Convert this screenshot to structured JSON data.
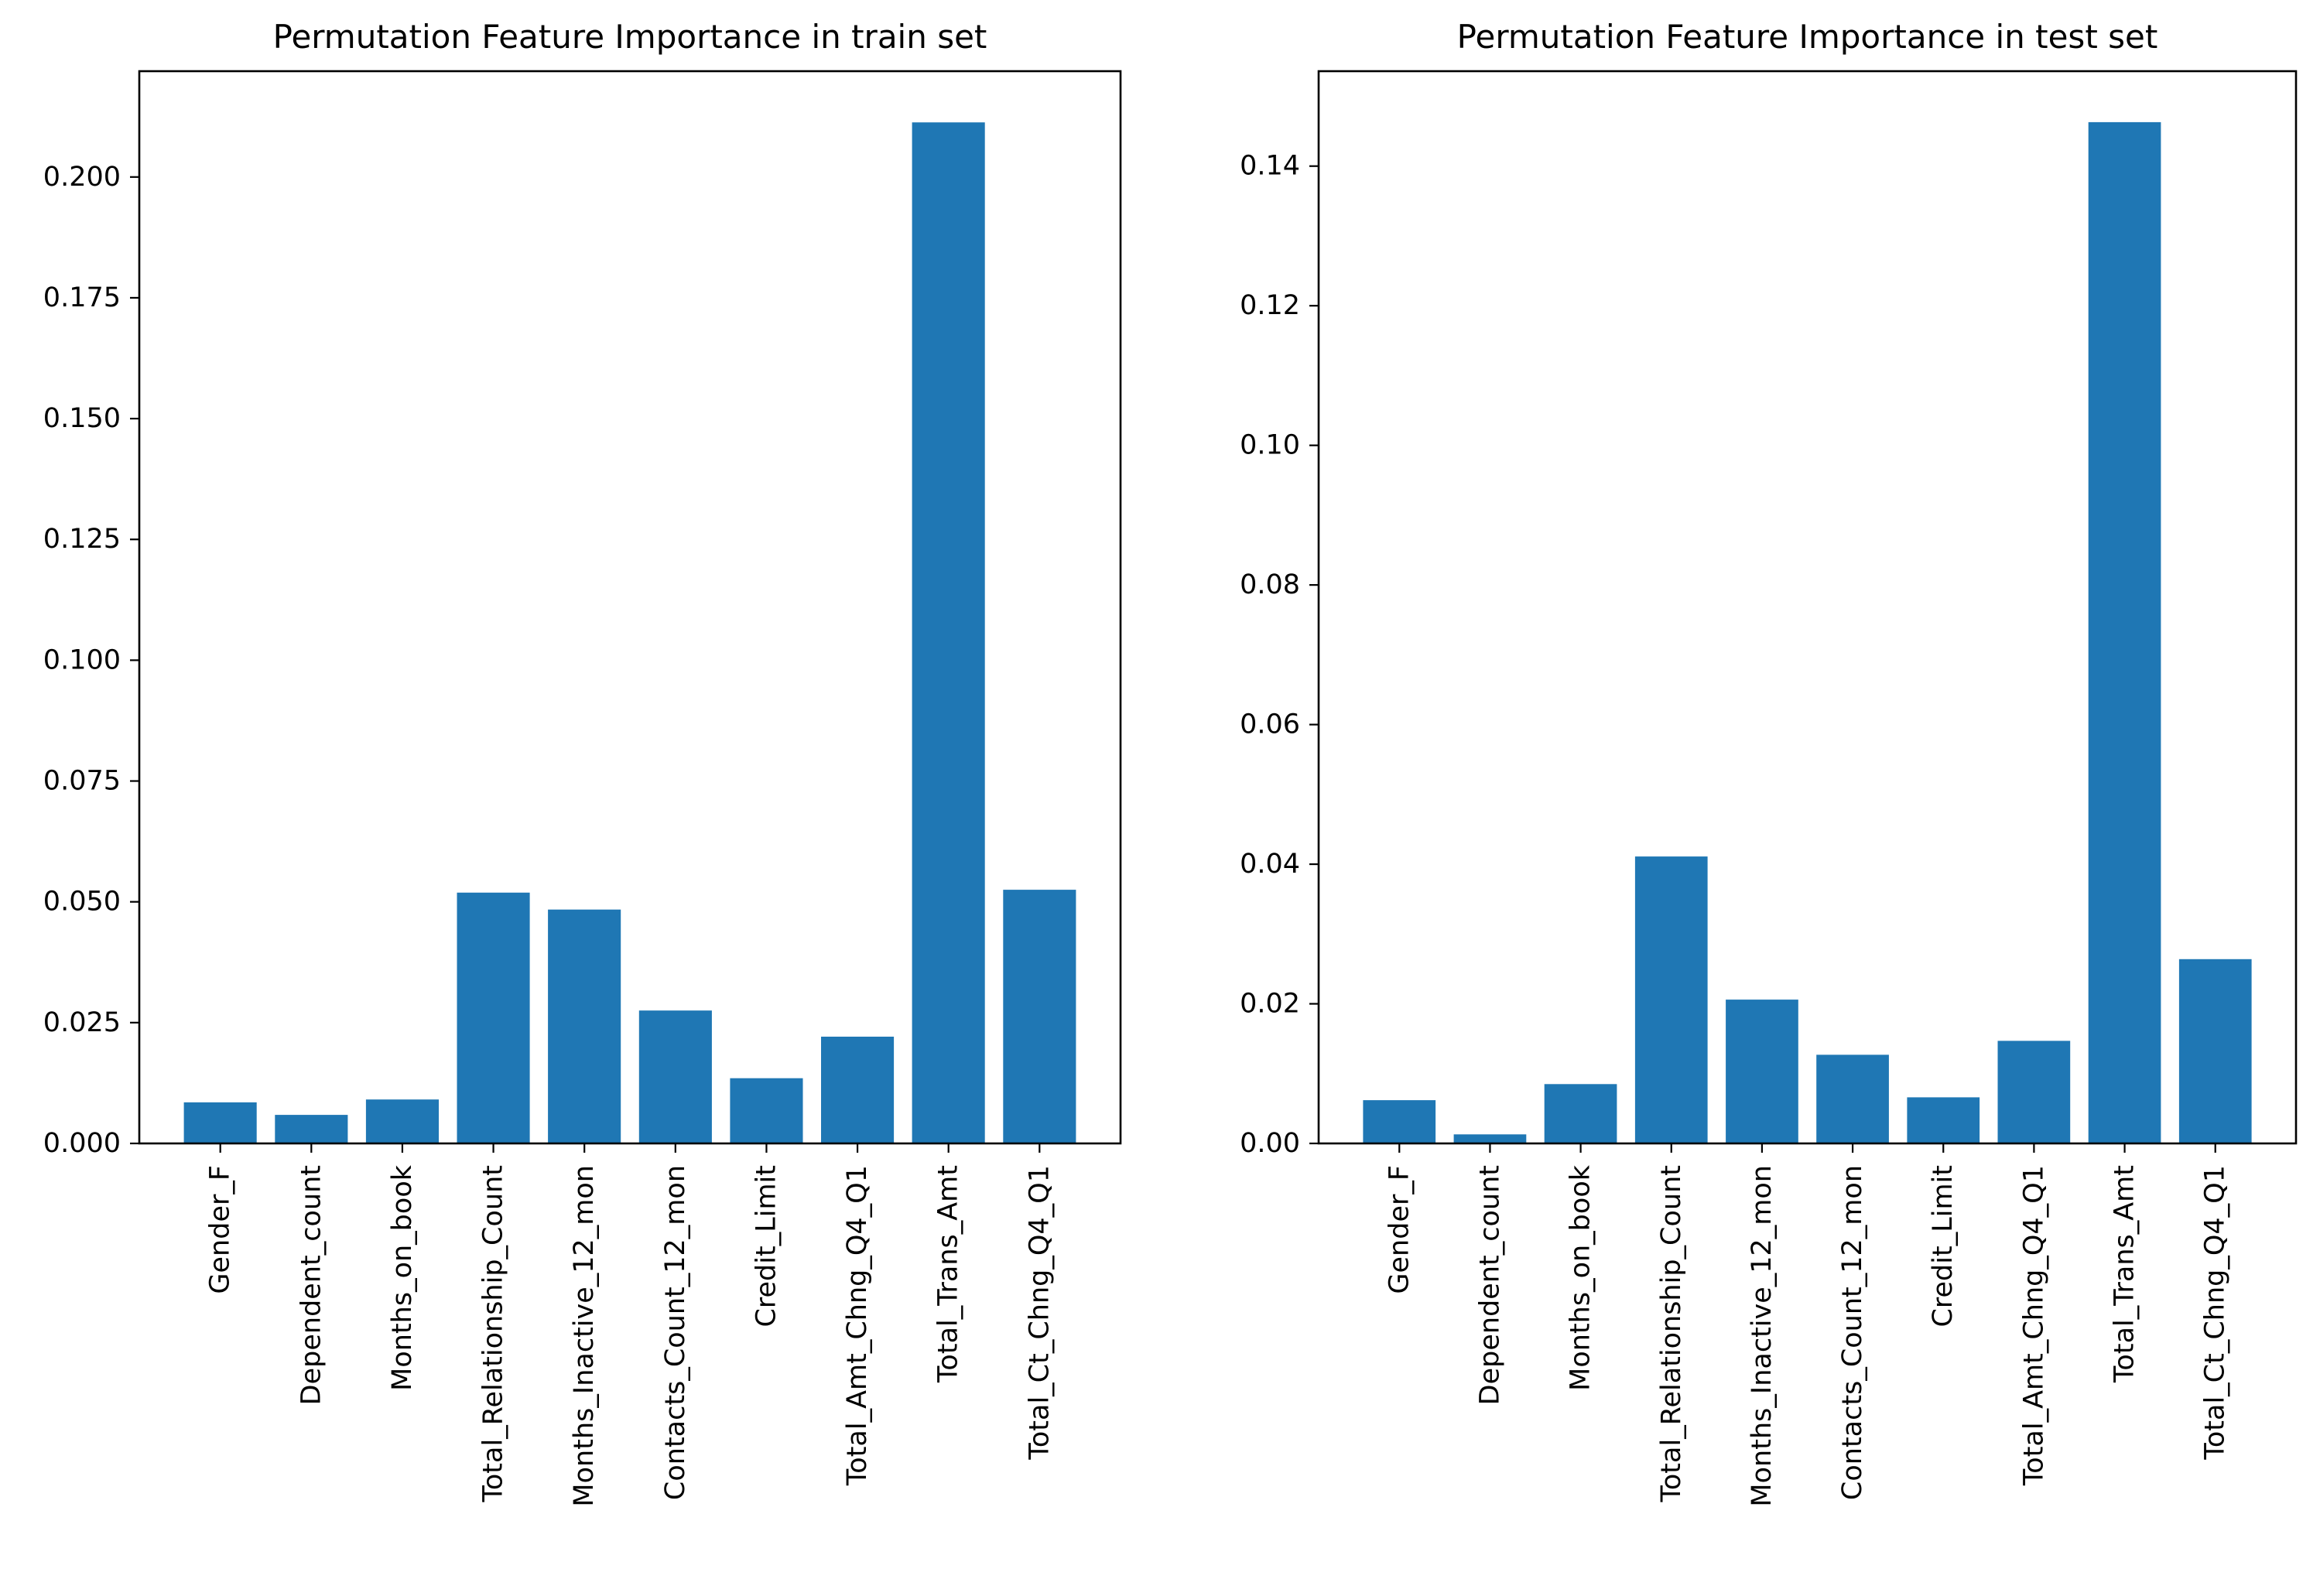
{
  "chart_data": [
    {
      "type": "bar",
      "title": "Permutation Feature Importance in train set",
      "xlabel": "",
      "ylabel": "",
      "categories": [
        "Gender_F",
        "Dependent_count",
        "Months_on_book",
        "Total_Relationship_Count",
        "Months_Inactive_12_mon",
        "Contacts_Count_12_mon",
        "Credit_Limit",
        "Total_Amt_Chng_Q4_Q1",
        "Total_Trans_Amt",
        "Total_Ct_Chng_Q4_Q1"
      ],
      "values": [
        0.0085,
        0.0059,
        0.0091,
        0.0519,
        0.0484,
        0.0275,
        0.0135,
        0.0221,
        0.2113,
        0.0525
      ],
      "ylim": [
        0,
        0.2219
      ],
      "yticks": [
        0.0,
        0.025,
        0.05,
        0.075,
        0.1,
        0.125,
        0.15,
        0.175,
        0.2
      ],
      "yticklabels": [
        "0.000",
        "0.025",
        "0.050",
        "0.075",
        "0.100",
        "0.125",
        "0.150",
        "0.175",
        "0.200"
      ],
      "color": "#1f77b4",
      "grid": false
    },
    {
      "type": "bar",
      "title": "Permutation Feature Importance in test set",
      "xlabel": "",
      "ylabel": "",
      "categories": [
        "Gender_F",
        "Dependent_count",
        "Months_on_book",
        "Total_Relationship_Count",
        "Months_Inactive_12_mon",
        "Contacts_Count_12_mon",
        "Credit_Limit",
        "Total_Amt_Chng_Q4_Q1",
        "Total_Trans_Amt",
        "Total_Ct_Chng_Q4_Q1"
      ],
      "values": [
        0.0062,
        0.0013,
        0.0085,
        0.0411,
        0.0206,
        0.0127,
        0.0066,
        0.0147,
        0.1463,
        0.0264
      ],
      "ylim": [
        0,
        0.1536
      ],
      "yticks": [
        0.0,
        0.02,
        0.04,
        0.06,
        0.08,
        0.1,
        0.12,
        0.14
      ],
      "yticklabels": [
        "0.00",
        "0.02",
        "0.04",
        "0.06",
        "0.08",
        "0.10",
        "0.12",
        "0.14"
      ],
      "color": "#1f77b4",
      "grid": false
    }
  ]
}
